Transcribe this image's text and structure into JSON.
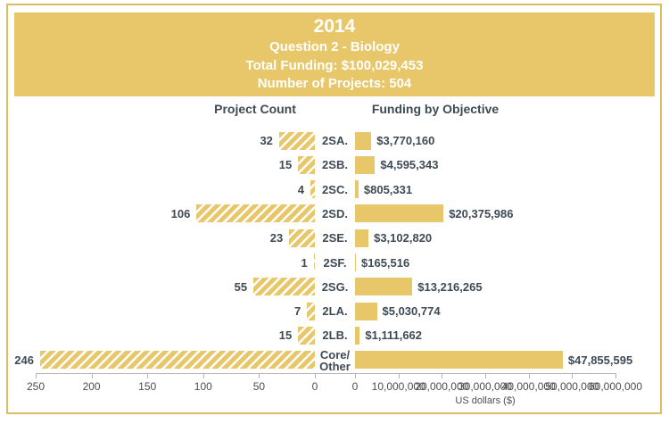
{
  "banner": {
    "year": "2014",
    "subtitle": "Question 2 - Biology",
    "total_funding": "Total Funding: $100,029,453",
    "num_projects": "Number of Projects: 504"
  },
  "colors": {
    "gold": "#E8C76A",
    "frame": "#DEBD5F",
    "ink": "#3E4A54",
    "tick_text": "#4D4D4D",
    "axis": "#B3B3B3",
    "banner_text": "#FFFFFF"
  },
  "chart_data": {
    "type": "bar",
    "orientation": "horizontal-bidirectional",
    "categories": [
      "2SA.",
      "2SB.",
      "2SC.",
      "2SD.",
      "2SE.",
      "2SF.",
      "2SG.",
      "2LA.",
      "2LB.",
      "Core/\nOther"
    ],
    "left": {
      "title": "Project Count",
      "values": [
        32,
        15,
        4,
        106,
        23,
        1,
        55,
        7,
        15,
        246
      ],
      "value_labels": [
        "32",
        "15",
        "4",
        "106",
        "23",
        "1",
        "55",
        "7",
        "15",
        "246"
      ],
      "axis_max": 250,
      "axis_ticks": [
        250,
        200,
        150,
        100,
        50,
        0
      ],
      "axis_tick_labels": [
        "250",
        "200",
        "150",
        "100",
        "50",
        "0"
      ],
      "bar_style": "hatched"
    },
    "right": {
      "title": "Funding by Objective",
      "values": [
        3770160,
        4595343,
        805331,
        20375986,
        3102820,
        165516,
        13216265,
        5030774,
        1111662,
        47855595
      ],
      "value_labels": [
        "$3,770,160",
        "$4,595,343",
        "$805,331",
        "$20,375,986",
        "$3,102,820",
        "$165,516",
        "$13,216,265",
        "$5,030,774",
        "$1,111,662",
        "$47,855,595"
      ],
      "axis_max": 60000000,
      "axis_ticks": [
        0,
        10000000,
        20000000,
        30000000,
        40000000,
        50000000,
        60000000
      ],
      "axis_tick_labels": [
        "0",
        "10,000,000",
        "20,000,000",
        "30,000,000",
        "40,000,000",
        "50,000,000",
        "60,000,000"
      ],
      "xlabel": "US dollars ($)",
      "bar_style": "solid"
    }
  }
}
